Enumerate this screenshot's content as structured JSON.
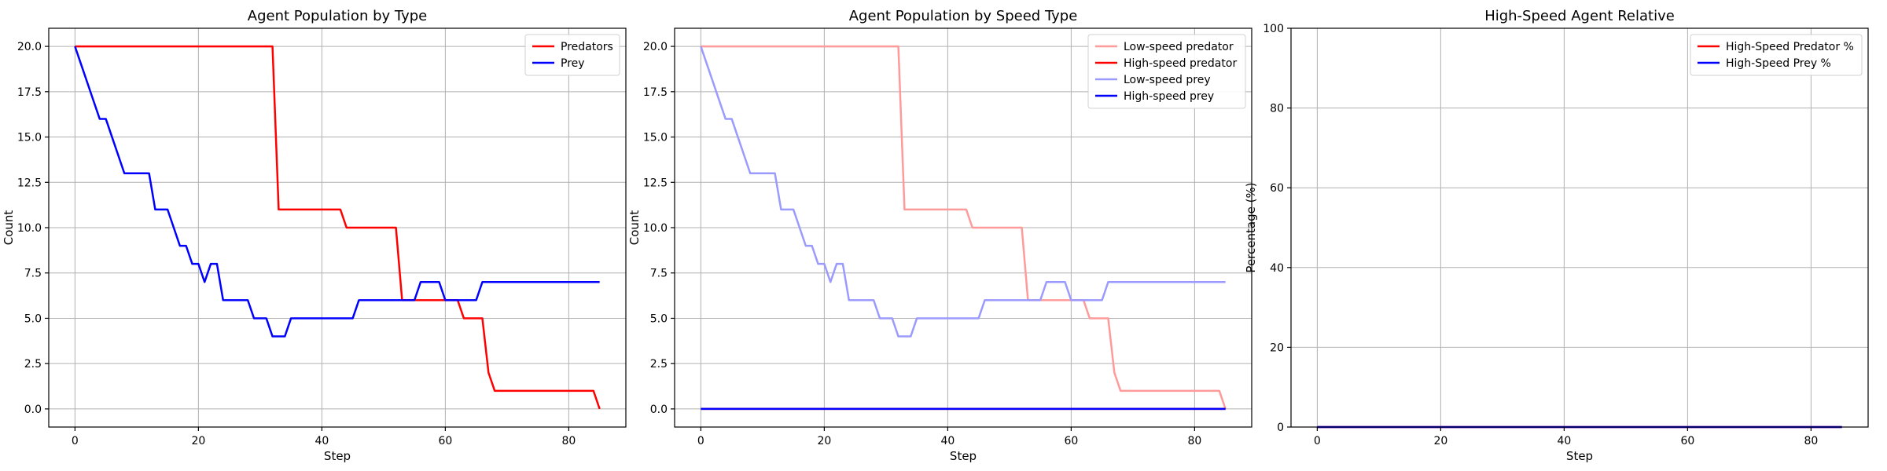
{
  "chart_data": [
    {
      "type": "line",
      "title": "Agent Population by Type",
      "xlabel": "Step",
      "ylabel": "Count",
      "xlim": [
        -4.25,
        89.25
      ],
      "ylim": [
        -1,
        21
      ],
      "xticks": [
        0,
        20,
        40,
        60,
        80
      ],
      "xtick_labels": [
        "0",
        "20",
        "40",
        "60",
        "80"
      ],
      "yticks": [
        0,
        2.5,
        5,
        7.5,
        10,
        12.5,
        15,
        17.5,
        20
      ],
      "ytick_labels": [
        "0.0",
        "2.5",
        "5.0",
        "7.5",
        "10.0",
        "12.5",
        "15.0",
        "17.5",
        "20.0"
      ],
      "grid": true,
      "legend": "top-right",
      "series": [
        {
          "name": "Predators",
          "color": "#ff0000",
          "points": [
            [
              0,
              20
            ],
            [
              32,
              20
            ],
            [
              33,
              11
            ],
            [
              43,
              11
            ],
            [
              44,
              10
            ],
            [
              52,
              10
            ],
            [
              53,
              6
            ],
            [
              62,
              6
            ],
            [
              63,
              5
            ],
            [
              65,
              5
            ],
            [
              66,
              5
            ],
            [
              67,
              2
            ],
            [
              68,
              1
            ],
            [
              84,
              1
            ],
            [
              85,
              0
            ]
          ]
        },
        {
          "name": "Prey",
          "color": "#0000ff",
          "points": [
            [
              0,
              20
            ],
            [
              1,
              19
            ],
            [
              2,
              18
            ],
            [
              3,
              17
            ],
            [
              4,
              16
            ],
            [
              5,
              16
            ],
            [
              6,
              15
            ],
            [
              7,
              14
            ],
            [
              8,
              13
            ],
            [
              12,
              13
            ],
            [
              13,
              11
            ],
            [
              15,
              11
            ],
            [
              16,
              10
            ],
            [
              17,
              9
            ],
            [
              18,
              9
            ],
            [
              19,
              8
            ],
            [
              20,
              8
            ],
            [
              21,
              7
            ],
            [
              22,
              8
            ],
            [
              23,
              8
            ],
            [
              24,
              6
            ],
            [
              28,
              6
            ],
            [
              29,
              5
            ],
            [
              31,
              5
            ],
            [
              32,
              4
            ],
            [
              34,
              4
            ],
            [
              35,
              5
            ],
            [
              45,
              5
            ],
            [
              46,
              6
            ],
            [
              55,
              6
            ],
            [
              56,
              7
            ],
            [
              59,
              7
            ],
            [
              60,
              6
            ],
            [
              65,
              6
            ],
            [
              66,
              7
            ],
            [
              85,
              7
            ]
          ]
        }
      ]
    },
    {
      "type": "line",
      "title": "Agent Population by Speed Type",
      "xlabel": "Step",
      "ylabel": "Count",
      "xlim": [
        -4.25,
        89.25
      ],
      "ylim": [
        -1,
        21
      ],
      "xticks": [
        0,
        20,
        40,
        60,
        80
      ],
      "xtick_labels": [
        "0",
        "20",
        "40",
        "60",
        "80"
      ],
      "yticks": [
        0,
        2.5,
        5,
        7.5,
        10,
        12.5,
        15,
        17.5,
        20
      ],
      "ytick_labels": [
        "0.0",
        "2.5",
        "5.0",
        "7.5",
        "10.0",
        "12.5",
        "15.0",
        "17.5",
        "20.0"
      ],
      "grid": true,
      "legend": "top-right",
      "series": [
        {
          "name": "Low-speed predator",
          "color": "#ff9a9a",
          "points": [
            [
              0,
              20
            ],
            [
              32,
              20
            ],
            [
              33,
              11
            ],
            [
              43,
              11
            ],
            [
              44,
              10
            ],
            [
              52,
              10
            ],
            [
              53,
              6
            ],
            [
              62,
              6
            ],
            [
              63,
              5
            ],
            [
              65,
              5
            ],
            [
              66,
              5
            ],
            [
              67,
              2
            ],
            [
              68,
              1
            ],
            [
              84,
              1
            ],
            [
              85,
              0
            ]
          ]
        },
        {
          "name": "High-speed predator",
          "color": "#ff0000",
          "points": [
            [
              0,
              0
            ],
            [
              85,
              0
            ]
          ]
        },
        {
          "name": "Low-speed prey",
          "color": "#9a9aff",
          "points": [
            [
              0,
              20
            ],
            [
              1,
              19
            ],
            [
              2,
              18
            ],
            [
              3,
              17
            ],
            [
              4,
              16
            ],
            [
              5,
              16
            ],
            [
              6,
              15
            ],
            [
              7,
              14
            ],
            [
              8,
              13
            ],
            [
              12,
              13
            ],
            [
              13,
              11
            ],
            [
              15,
              11
            ],
            [
              16,
              10
            ],
            [
              17,
              9
            ],
            [
              18,
              9
            ],
            [
              19,
              8
            ],
            [
              20,
              8
            ],
            [
              21,
              7
            ],
            [
              22,
              8
            ],
            [
              23,
              8
            ],
            [
              24,
              6
            ],
            [
              28,
              6
            ],
            [
              29,
              5
            ],
            [
              31,
              5
            ],
            [
              32,
              4
            ],
            [
              34,
              4
            ],
            [
              35,
              5
            ],
            [
              45,
              5
            ],
            [
              46,
              6
            ],
            [
              55,
              6
            ],
            [
              56,
              7
            ],
            [
              59,
              7
            ],
            [
              60,
              6
            ],
            [
              65,
              6
            ],
            [
              66,
              7
            ],
            [
              85,
              7
            ]
          ]
        },
        {
          "name": "High-speed prey",
          "color": "#0000ff",
          "points": [
            [
              0,
              0
            ],
            [
              85,
              0
            ]
          ]
        }
      ]
    },
    {
      "type": "line",
      "title": "High-Speed Agent Relative",
      "xlabel": "Step",
      "ylabel": "Percentage (%)",
      "xlim": [
        -4.25,
        89.25
      ],
      "ylim": [
        0,
        100
      ],
      "xticks": [
        0,
        20,
        40,
        60,
        80
      ],
      "xtick_labels": [
        "0",
        "20",
        "40",
        "60",
        "80"
      ],
      "yticks": [
        0,
        20,
        40,
        60,
        80,
        100
      ],
      "ytick_labels": [
        "0",
        "20",
        "40",
        "60",
        "80",
        "100"
      ],
      "grid": true,
      "legend": "top-right",
      "series": [
        {
          "name": "High-Speed Predator %",
          "color": "#ff0000",
          "points": [
            [
              0,
              0
            ],
            [
              85,
              0
            ]
          ]
        },
        {
          "name": "High-Speed Prey %",
          "color": "#0000ff",
          "points": [
            [
              0,
              0
            ],
            [
              85,
              0
            ]
          ]
        }
      ]
    }
  ]
}
